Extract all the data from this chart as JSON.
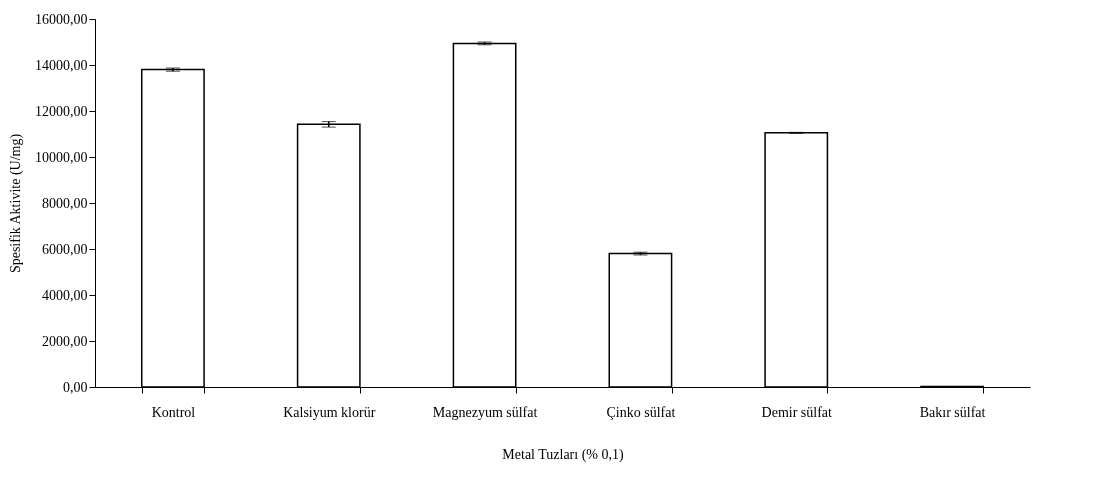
{
  "chart_data": {
    "type": "bar",
    "xlabel": "Metal Tuzları (% 0,1)",
    "ylabel": "Spesifik Aktivite (U/mg)",
    "categories": [
      "Kontrol",
      "Kalsiyum klorür",
      "Magnezyum sülfat",
      "Çinko sülfat",
      "Demir sülfat",
      "Bakır sülfat"
    ],
    "values": [
      13800,
      11420,
      14940,
      5800,
      11050,
      20
    ],
    "errors": [
      70,
      120,
      60,
      60,
      20,
      null
    ],
    "color": "#ffffff",
    "ylim": [
      0,
      16000
    ],
    "yticks": [
      {
        "value": 0,
        "label": "0,00"
      },
      {
        "value": 2000,
        "label": "2000,00"
      },
      {
        "value": 4000,
        "label": "4000,00"
      },
      {
        "value": 6000,
        "label": "6000,00"
      },
      {
        "value": 8000,
        "label": "8000,00"
      },
      {
        "value": 10000,
        "label": "10000,00"
      },
      {
        "value": 12000,
        "label": "12000,00"
      },
      {
        "value": 14000,
        "label": "14000,00"
      },
      {
        "value": 16000,
        "label": "16000,00"
      }
    ],
    "grid": false
  }
}
